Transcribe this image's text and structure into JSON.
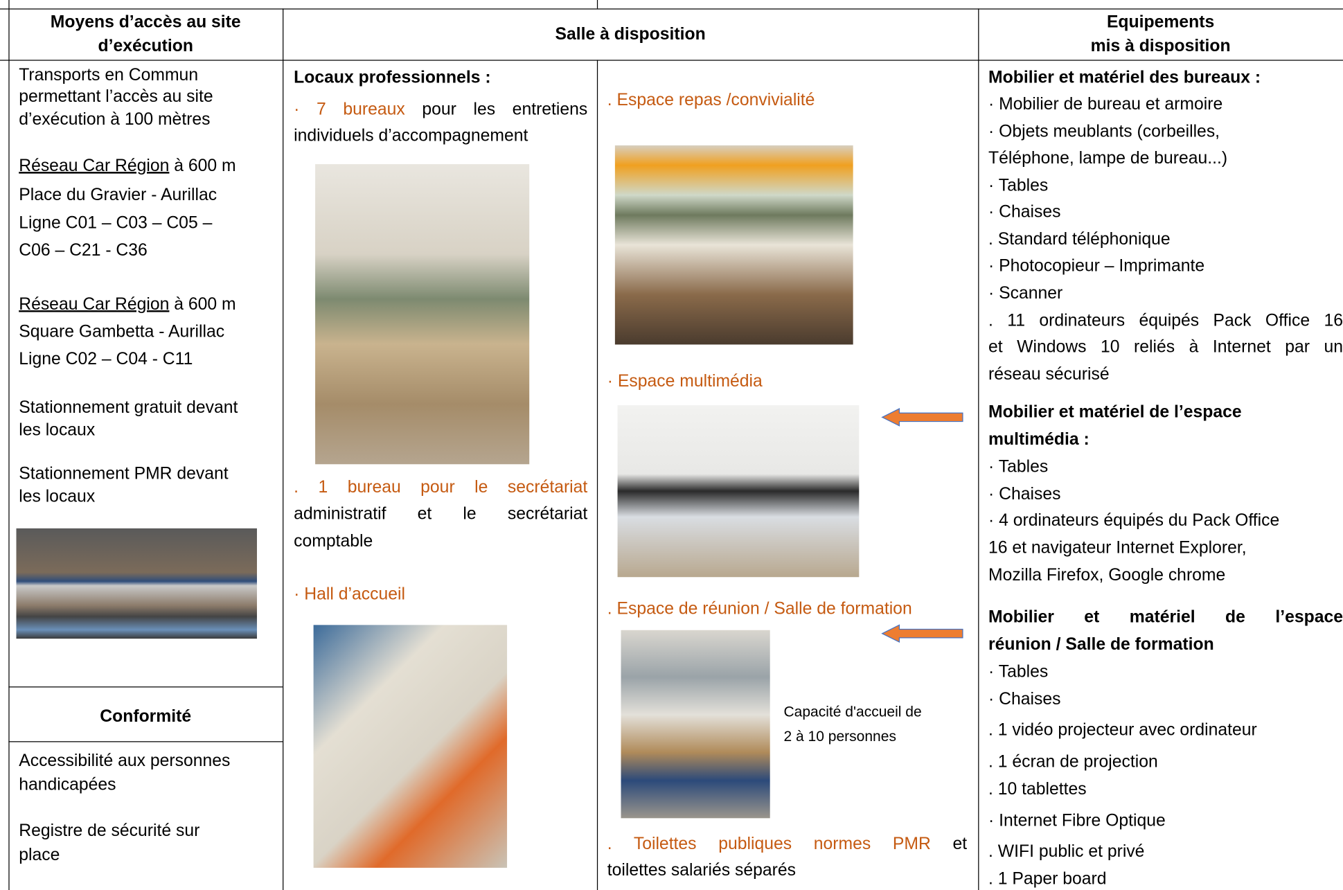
{
  "header": {
    "access": [
      "Moyens d’accès au site",
      "d’exécution"
    ],
    "room": "Salle à disposition",
    "equipment": [
      "Equipements",
      "mis à disposition"
    ]
  },
  "access": {
    "intro": [
      "Transports en Commun",
      "permettant l’accès au site",
      "d’exécution à 100 mètres"
    ],
    "networks": [
      {
        "link": "Réseau Car Région",
        "distance": "à 600 m",
        "lines": [
          "Place du Gravier - Aurillac",
          "Ligne C01 – C03 – C05 –",
          "C06 – C21 - C36"
        ]
      },
      {
        "link": "Réseau Car Région",
        "distance": "à 600 m",
        "lines": [
          "Square Gambetta - Aurillac",
          "Ligne C02 – C04 - C11"
        ]
      }
    ],
    "parking": [
      [
        "Stationnement gratuit devant",
        "les locaux"
      ],
      [
        "Stationnement PMR devant",
        "les locaux"
      ]
    ]
  },
  "compliance": {
    "title": "Conformité",
    "items": [
      [
        "Accessibilité aux personnes",
        "handicapées"
      ],
      [
        "Registre de sécurité sur",
        "place"
      ]
    ]
  },
  "rooms": {
    "title": "Locaux professionnels :",
    "offices": {
      "highlight": "· 7 bureaux",
      "lines": [
        "pour les entretiens",
        "individuels d’accompagnement"
      ]
    },
    "secretariat": {
      "highlight": ". 1 bureau pour le secrétariat",
      "lines": [
        "administratif et le secrétariat",
        "comptable"
      ]
    },
    "hall": "· Hall d’accueil",
    "dining": ". Espace repas /convivialité",
    "multimedia": "· Espace multimédia",
    "meeting": ". Espace de réunion / Salle de formation",
    "capacity": [
      "Capacité d'accueil de",
      "2 à 10 personnes"
    ],
    "toilets": {
      "highlight": ". Toilettes publiques normes PMR",
      "lines": [
        "et",
        "toilettes salariés séparés"
      ]
    }
  },
  "equipment": [
    {
      "title": [
        "Mobilier et matériel des bureaux :"
      ],
      "lines": [
        "· Mobilier de bureau et armoire",
        "· Objets meublants (corbeilles,",
        "Téléphone, lampe de bureau...)",
        "· Tables",
        "· Chaises",
        ". Standard téléphonique",
        "· Photocopieur – Imprimante",
        "· Scanner",
        ". 11 ordinateurs équipés Pack Office 16",
        "et Windows 10 reliés à Internet par un",
        "réseau sécurisé"
      ]
    },
    {
      "title": [
        "Mobilier et matériel de l’espace",
        "multimédia :"
      ],
      "lines": [
        "· Tables",
        "· Chaises",
        "· 4 ordinateurs équipés du Pack Office",
        "16 et navigateur Internet Explorer,",
        "Mozilla Firefox, Google chrome"
      ]
    },
    {
      "title": [
        "Mobilier et matériel de l’espace",
        "réunion / Salle de formation"
      ],
      "lines": [
        "· Tables",
        "· Chaises",
        ". 1 vidéo projecteur avec ordinateur",
        ". 1 écran de projection",
        ". 10 tablettes",
        "· Internet Fibre Optique",
        ". WIFI public et privé",
        ". 1 Paper board"
      ]
    }
  ]
}
